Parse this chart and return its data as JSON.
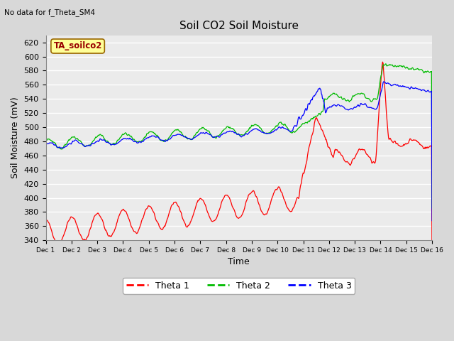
{
  "title": "Soil CO2 Soil Moisture",
  "xlabel": "Time",
  "ylabel": "Soil Moisture (mV)",
  "top_left_text": "No data for f_Theta_SM4",
  "annotation_box_text": "TA_soilco2",
  "ylim": [
    340,
    630
  ],
  "yticks": [
    340,
    360,
    380,
    400,
    420,
    440,
    460,
    480,
    500,
    520,
    540,
    560,
    580,
    600,
    620
  ],
  "xtick_labels": [
    "Dec 1",
    "Dec 2",
    "Dec 3",
    "Dec 4",
    "Dec 5",
    "Dec 6",
    "Dec 7",
    "Dec 8",
    "Dec 9",
    "Dec 10",
    "Dec 11",
    "Dec 12",
    "Dec 13",
    "Dec 14",
    "Dec 15",
    "Dec 16"
  ],
  "legend_labels": [
    "Theta 1",
    "Theta 2",
    "Theta 3"
  ],
  "line_colors": [
    "#ff0000",
    "#00bb00",
    "#0000ff"
  ],
  "background_color": "#d8d8d8",
  "plot_bg_color": "#ebebeb",
  "grid_color": "#ffffff",
  "annotation_box_facecolor": "#ffff99",
  "annotation_box_edgecolor": "#996600",
  "annotation_text_color": "#990000"
}
